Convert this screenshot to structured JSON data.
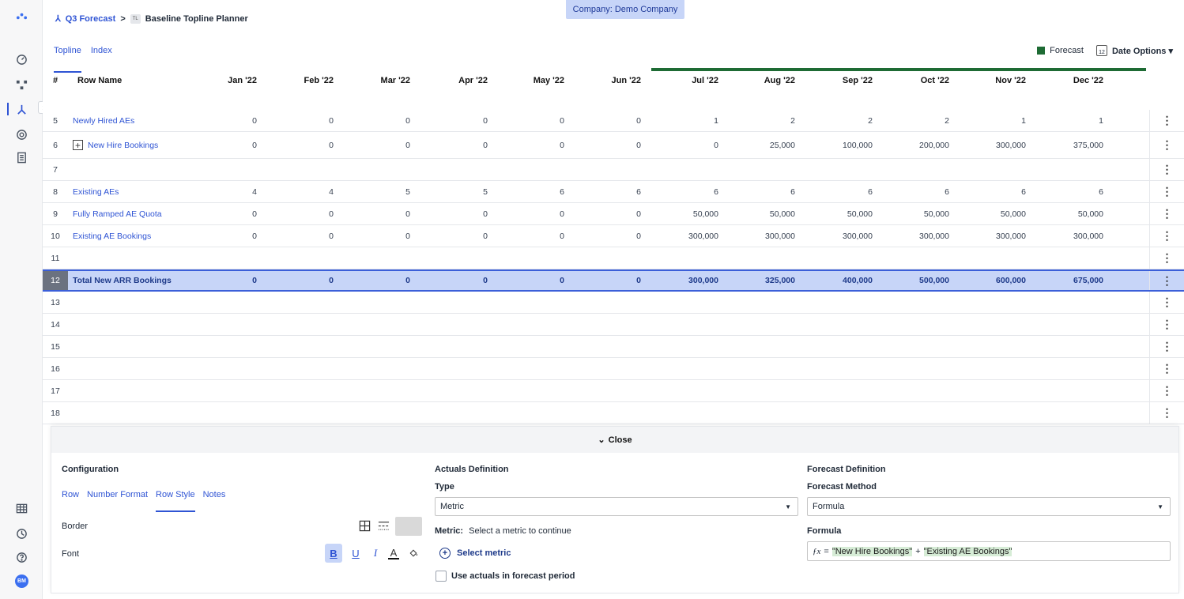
{
  "breadcrumb": {
    "parent": "Q3 Forecast",
    "sep": ">",
    "badge": "TL",
    "current": "Baseline Topline Planner"
  },
  "company_badge": "Company: Demo Company",
  "tabs": [
    {
      "label": "Topline"
    },
    {
      "label": "Index"
    }
  ],
  "legend": {
    "forecast_label": "Forecast",
    "forecast_color": "#1e6b34",
    "date_options": "Date Options ▾",
    "calendar_day": "12"
  },
  "grid": {
    "col_hash": "#",
    "col_name": "Row Name",
    "months": [
      "Jan '22",
      "Feb '22",
      "Mar '22",
      "Apr '22",
      "May '22",
      "Jun '22",
      "Jul '22",
      "Aug '22",
      "Sep '22",
      "Oct '22",
      "Nov '22",
      "Dec '22"
    ],
    "rows": [
      {
        "num": "5",
        "name": "Newly Hired AEs",
        "values": [
          "0",
          "0",
          "0",
          "0",
          "0",
          "0",
          "1",
          "2",
          "2",
          "2",
          "1",
          "1"
        ]
      },
      {
        "num": "6",
        "name": "New Hire Bookings",
        "expand": "+",
        "values": [
          "0",
          "0",
          "0",
          "0",
          "0",
          "0",
          "0",
          "25,000",
          "100,000",
          "200,000",
          "300,000",
          "375,000"
        ]
      },
      {
        "num": "7",
        "name": "",
        "values": [
          "",
          "",
          "",
          "",
          "",
          "",
          "",
          "",
          "",
          "",
          "",
          ""
        ]
      },
      {
        "num": "8",
        "name": "Existing AEs",
        "values": [
          "4",
          "4",
          "5",
          "5",
          "6",
          "6",
          "6",
          "6",
          "6",
          "6",
          "6",
          "6"
        ]
      },
      {
        "num": "9",
        "name": "Fully Ramped AE Quota",
        "values": [
          "0",
          "0",
          "0",
          "0",
          "0",
          "0",
          "50,000",
          "50,000",
          "50,000",
          "50,000",
          "50,000",
          "50,000"
        ]
      },
      {
        "num": "10",
        "name": "Existing AE Bookings",
        "values": [
          "0",
          "0",
          "0",
          "0",
          "0",
          "0",
          "300,000",
          "300,000",
          "300,000",
          "300,000",
          "300,000",
          "300,000"
        ]
      },
      {
        "num": "11",
        "name": "",
        "values": [
          "",
          "",
          "",
          "",
          "",
          "",
          "",
          "",
          "",
          "",
          "",
          ""
        ]
      },
      {
        "num": "12",
        "name": "Total New ARR Bookings",
        "selected": true,
        "values": [
          "0",
          "0",
          "0",
          "0",
          "0",
          "0",
          "300,000",
          "325,000",
          "400,000",
          "500,000",
          "600,000",
          "675,000"
        ]
      },
      {
        "num": "13",
        "name": "",
        "values": [
          "",
          "",
          "",
          "",
          "",
          "",
          "",
          "",
          "",
          "",
          "",
          ""
        ]
      },
      {
        "num": "14",
        "name": "",
        "values": [
          "",
          "",
          "",
          "",
          "",
          "",
          "",
          "",
          "",
          "",
          "",
          ""
        ]
      },
      {
        "num": "15",
        "name": "",
        "values": [
          "",
          "",
          "",
          "",
          "",
          "",
          "",
          "",
          "",
          "",
          "",
          ""
        ]
      },
      {
        "num": "16",
        "name": "",
        "values": [
          "",
          "",
          "",
          "",
          "",
          "",
          "",
          "",
          "",
          "",
          "",
          ""
        ]
      },
      {
        "num": "17",
        "name": "",
        "values": [
          "",
          "",
          "",
          "",
          "",
          "",
          "",
          "",
          "",
          "",
          "",
          ""
        ]
      },
      {
        "num": "18",
        "name": "",
        "values": [
          "",
          "",
          "",
          "",
          "",
          "",
          "",
          "",
          "",
          "",
          "",
          ""
        ]
      }
    ],
    "kebab": "⋮"
  },
  "panel": {
    "close_label": "Close",
    "close_chevron": "⌄",
    "configuration": {
      "title": "Configuration",
      "subtabs": [
        "Row",
        "Number Format",
        "Row Style",
        "Notes"
      ],
      "border_label": "Border",
      "font_label": "Font",
      "font_buttons": {
        "bold": "B",
        "underline": "U",
        "italic": "I",
        "color": "A"
      }
    },
    "actuals": {
      "title": "Actuals Definition",
      "type_label": "Type",
      "type_value": "Metric",
      "metric_label": "Metric:",
      "metric_hint": "Select a metric to continue",
      "select_metric": "Select metric",
      "checkbox_label": "Use actuals in forecast period"
    },
    "forecast": {
      "title": "Forecast Definition",
      "method_label": "Forecast Method",
      "method_value": "Formula",
      "formula_label": "Formula",
      "fx": "ƒx",
      "formula_eq": "=",
      "formula_term1": "\"New Hire Bookings\"",
      "formula_op": "+",
      "formula_term2": "\"Existing AE Bookings\""
    }
  },
  "brand_color": "#2f54d4",
  "avatar_initials": "BM"
}
